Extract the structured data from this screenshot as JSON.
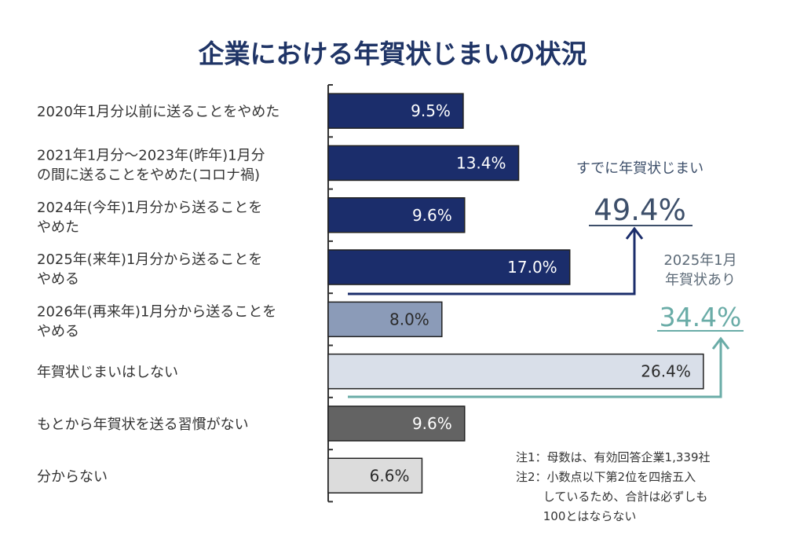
{
  "chart_data": {
    "type": "bar",
    "orientation": "horizontal",
    "title": "企業における年賀状じまいの状況",
    "unit": "%",
    "xlim": [
      0,
      30
    ],
    "categories": [
      [
        "2020年1月分以前に送ることをやめた"
      ],
      [
        "2021年1月分～2023年(昨年)1月分",
        "の間に送ることをやめた(コロナ禍)"
      ],
      [
        "2024年(今年)1月分から送ることを",
        "やめた"
      ],
      [
        "2025年(来年)1月分から送ることを",
        "やめる"
      ],
      [
        "2026年(再来年)1月分から送ることを",
        "やめる"
      ],
      [
        "年賀状じまいはしない"
      ],
      [
        "もとから年賀状を送る習慣がない"
      ],
      [
        "分からない"
      ]
    ],
    "values": [
      9.5,
      13.4,
      9.6,
      17.0,
      8.0,
      26.4,
      9.6,
      6.6
    ],
    "data_labels": [
      "9.5%",
      "13.4%",
      "9.6%",
      "17.0%",
      "8.0%",
      "26.4%",
      "9.6%",
      "6.6%"
    ],
    "bar_colors": [
      "#1b2d6b",
      "#1b2d6b",
      "#1b2d6b",
      "#1b2d6b",
      "#8b9bb8",
      "#d9dfe9",
      "#636363",
      "#dcdcdc"
    ],
    "label_colors": [
      "#ffffff",
      "#ffffff",
      "#ffffff",
      "#ffffff",
      "#2a2a2a",
      "#2a2a2a",
      "#ffffff",
      "#2a2a2a"
    ],
    "annotations": {
      "already": {
        "label": "すでに年賀状じまい",
        "value": "49.4%",
        "color": "#1b2d6b",
        "text_color": "#3d4f6a"
      },
      "still": {
        "label_line1": "2025年1月",
        "label_line2": "年賀状あり",
        "value": "34.4%",
        "color": "#6aaca7",
        "text_color": "#5d6b78"
      }
    },
    "notes": [
      "注1：母数は、有効回答企業1,339社",
      "注2：小数点以下第2位を四捨五入",
      "　　 しているため、合計は必ずしも",
      "　　 100とはならない"
    ]
  },
  "colors": {
    "title": "#1f3466",
    "axis": "#333333",
    "text": "#333333"
  }
}
